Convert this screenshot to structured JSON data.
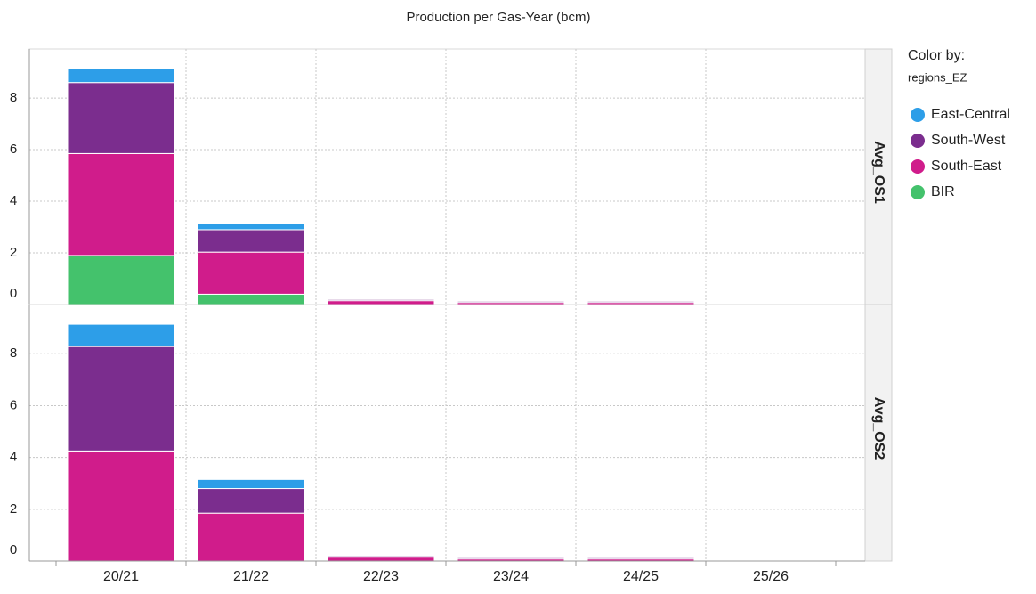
{
  "chart_data": {
    "type": "bar",
    "stacked": true,
    "title": "Production per Gas-Year (bcm)",
    "legend_title": "Color by:",
    "legend_subtitle": "regions_EZ",
    "categories": [
      "20/21",
      "21/22",
      "22/23",
      "23/24",
      "24/25",
      "25/26"
    ],
    "series": [
      {
        "name": "East-Central",
        "color": "#2d9ee8"
      },
      {
        "name": "South-West",
        "color": "#7b2d8e"
      },
      {
        "name": "South-East",
        "color": "#d01c8b"
      },
      {
        "name": "BIR",
        "color": "#44c26c"
      }
    ],
    "facets": [
      {
        "label": "Avg_OS1",
        "values": [
          [
            0.55,
            0.24,
            0.02,
            0.03,
            0.03,
            0.02
          ],
          [
            2.75,
            0.87,
            0.05,
            0.05,
            0.05,
            0.02
          ],
          [
            3.95,
            1.63,
            0.15,
            0.08,
            0.08,
            0.02
          ],
          [
            1.9,
            0.4,
            0,
            0,
            0,
            0
          ]
        ]
      },
      {
        "label": "Avg_OS2",
        "values": [
          [
            0.86,
            0.35,
            0.02,
            0.03,
            0.03,
            0.02
          ],
          [
            4.03,
            0.95,
            0.05,
            0.05,
            0.05,
            0.02
          ],
          [
            4.25,
            1.85,
            0.15,
            0.08,
            0.08,
            0.02
          ],
          [
            0,
            0,
            0,
            0,
            0,
            0
          ]
        ]
      }
    ],
    "ylim": [
      0,
      9.9
    ],
    "yticks": [
      0,
      2,
      4,
      6,
      8
    ],
    "grid": true,
    "legend": "right"
  }
}
